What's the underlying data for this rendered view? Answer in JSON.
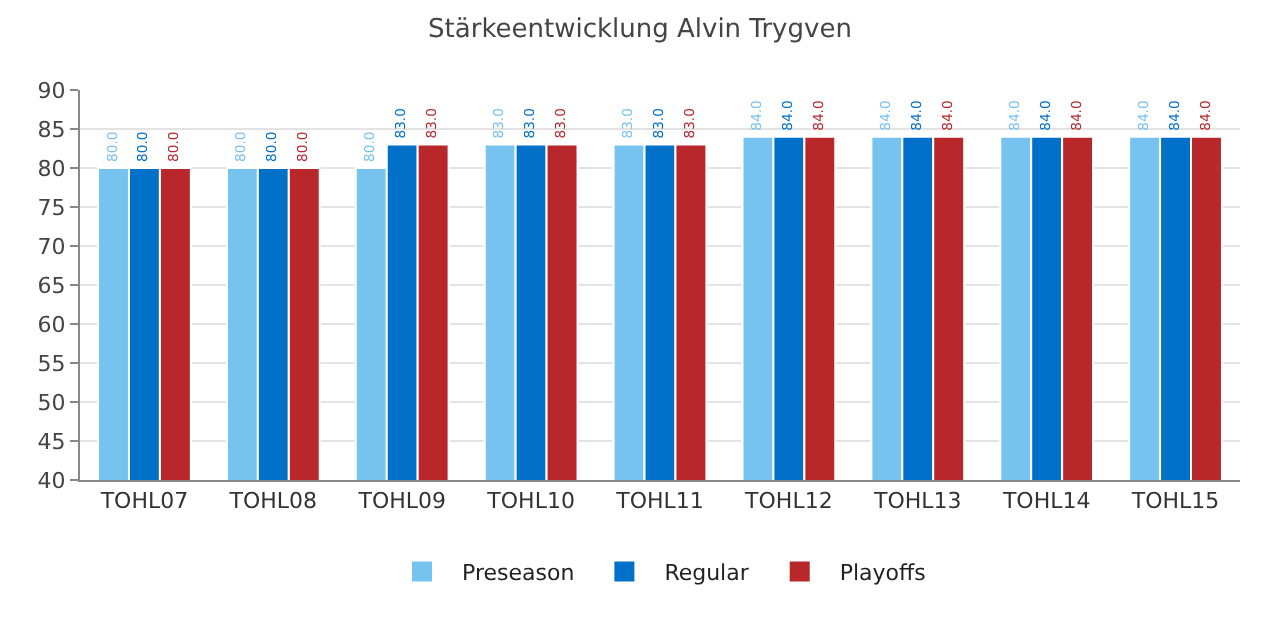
{
  "chart_data": {
    "type": "bar",
    "title": "Stärkeentwicklung Alvin Trygven",
    "categories": [
      "TOHL07",
      "TOHL08",
      "TOHL09",
      "TOHL10",
      "TOHL11",
      "TOHL12",
      "TOHL13",
      "TOHL14",
      "TOHL15"
    ],
    "series": [
      {
        "name": "Preseason",
        "color": "#77c3ef",
        "values": [
          80,
          80,
          80,
          83,
          83,
          84,
          84,
          84,
          84
        ],
        "value_labels": [
          "80.0",
          "80.0",
          "80.0",
          "83.0",
          "83.0",
          "84.0",
          "84.0",
          "84.0",
          "84.0"
        ]
      },
      {
        "name": "Regular",
        "color": "#0070c8",
        "values": [
          80,
          80,
          83,
          83,
          83,
          84,
          84,
          84,
          84
        ],
        "value_labels": [
          "80.0",
          "80.0",
          "83.0",
          "83.0",
          "83.0",
          "84.0",
          "84.0",
          "84.0",
          "84.0"
        ]
      },
      {
        "name": "Playoffs",
        "color": "#b8282a",
        "values": [
          80,
          80,
          83,
          83,
          83,
          84,
          84,
          84,
          84
        ],
        "value_labels": [
          "80.0",
          "80.0",
          "83.0",
          "83.0",
          "83.0",
          "84.0",
          "84.0",
          "84.0",
          "84.0"
        ]
      }
    ],
    "ylim": [
      40,
      90
    ],
    "yticks": [
      40,
      45,
      50,
      55,
      60,
      65,
      70,
      75,
      80,
      85,
      90
    ],
    "grid": "y",
    "legend": "bottom"
  }
}
